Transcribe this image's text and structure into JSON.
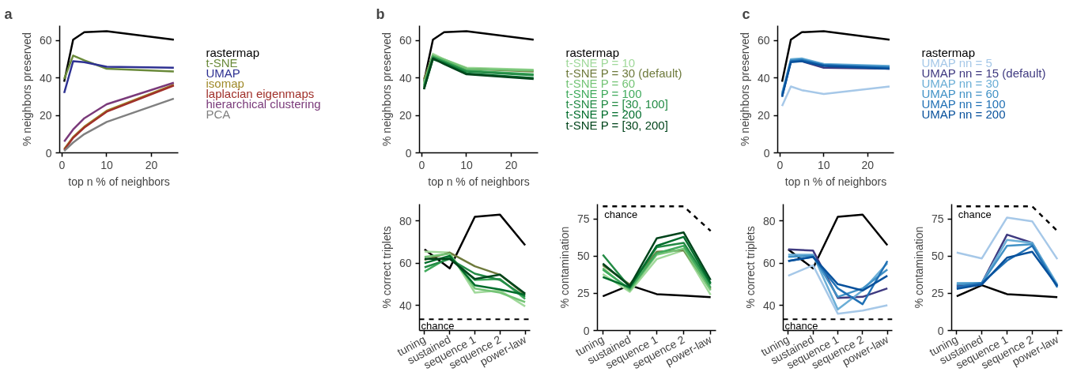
{
  "chart_data": [
    {
      "type": "line",
      "title": "a",
      "xlabel": "top n % of neighbors",
      "ylabel": "% neighbors preserved",
      "x": [
        0.5,
        2.5,
        5,
        10,
        25
      ],
      "xlim": [
        -0.5,
        26
      ],
      "xticks": [
        0,
        10,
        20
      ],
      "ylim": [
        0,
        68
      ],
      "yticks": [
        0,
        20,
        40,
        60
      ],
      "legend": "right",
      "series": [
        {
          "name": "rastermap",
          "color": "#000000",
          "values": [
            38,
            60.5,
            64.5,
            65,
            60.5
          ]
        },
        {
          "name": "t-SNE",
          "color": "#6a8a3a",
          "values": [
            39.5,
            52,
            49.5,
            45,
            43.5
          ]
        },
        {
          "name": "UMAP",
          "color": "#2e3192",
          "values": [
            32,
            49,
            48.5,
            46,
            45.5
          ]
        },
        {
          "name": "isomap",
          "color": "#a08a2a",
          "values": [
            2,
            8.5,
            14,
            22.5,
            36.5
          ]
        },
        {
          "name": "laplacian eigenmaps",
          "color": "#a0302a",
          "values": [
            1.5,
            8,
            13.5,
            22,
            36
          ]
        },
        {
          "name": "hierarchical clustering",
          "color": "#7a3a7a",
          "values": [
            6,
            12.5,
            18.5,
            26,
            37.5
          ]
        },
        {
          "name": "PCA",
          "color": "#808080",
          "values": [
            1,
            5.5,
            10,
            16.5,
            29
          ]
        }
      ]
    },
    {
      "type": "line",
      "title": "b",
      "xlabel": "top n % of neighbors",
      "ylabel": "% neighbors preserved",
      "x": [
        0.5,
        2.5,
        5,
        10,
        25
      ],
      "xlim": [
        -0.5,
        26
      ],
      "xticks": [
        0,
        10,
        20
      ],
      "ylim": [
        0,
        68
      ],
      "yticks": [
        0,
        20,
        40,
        60
      ],
      "legend": "right",
      "series": [
        {
          "name": "rastermap",
          "color": "#000000",
          "values": [
            38,
            60.5,
            64.5,
            65,
            60.5
          ]
        },
        {
          "name": "t-SNE P = 10",
          "color": "#a1d99b",
          "values": [
            38,
            53,
            50,
            45.5,
            44.5
          ]
        },
        {
          "name": "t-SNE P = 30 (default)",
          "color": "#6e7a3c",
          "values": [
            39.5,
            52,
            49.5,
            45,
            43.5
          ]
        },
        {
          "name": "t-SNE P = 60",
          "color": "#74c476",
          "values": [
            37,
            52,
            50,
            45,
            44
          ]
        },
        {
          "name": "t-SNE P = 100",
          "color": "#41ab5d",
          "values": [
            36,
            51.5,
            49,
            44,
            42
          ]
        },
        {
          "name": "t-SNE P = [30, 100]",
          "color": "#238b45",
          "values": [
            35,
            51,
            48.5,
            43.5,
            41.5
          ]
        },
        {
          "name": "t-SNE P = 200",
          "color": "#006d2c",
          "values": [
            34,
            50,
            48,
            42.5,
            40
          ]
        },
        {
          "name": "t-SNE P = [30, 200]",
          "color": "#00441b",
          "values": [
            34,
            50.5,
            47.5,
            42,
            39.5
          ]
        }
      ]
    },
    {
      "type": "line",
      "title": "c",
      "xlabel": "top n % of neighbors",
      "ylabel": "% neighbors preserved",
      "x": [
        0.5,
        2.5,
        5,
        10,
        25
      ],
      "xlim": [
        -0.5,
        26
      ],
      "xticks": [
        0,
        10,
        20
      ],
      "ylim": [
        0,
        68
      ],
      "yticks": [
        0,
        20,
        40,
        60
      ],
      "legend": "right",
      "series": [
        {
          "name": "rastermap",
          "color": "#000000",
          "values": [
            38,
            60.5,
            64.5,
            65,
            60.5
          ]
        },
        {
          "name": "UMAP nn = 5",
          "color": "#a6c8e8",
          "values": [
            25,
            35.5,
            33.5,
            31.5,
            35.5
          ]
        },
        {
          "name": "UMAP nn = 15 (default)",
          "color": "#3f3a80",
          "values": [
            31,
            49,
            49,
            45.5,
            45
          ]
        },
        {
          "name": "UMAP nn = 30",
          "color": "#6baed6",
          "values": [
            32,
            50,
            50.5,
            47.5,
            46.5
          ]
        },
        {
          "name": "UMAP nn = 60",
          "color": "#4292c6",
          "values": [
            31,
            49.5,
            50,
            47,
            46
          ]
        },
        {
          "name": "UMAP nn = 100",
          "color": "#2171b5",
          "values": [
            30,
            49,
            49.5,
            47,
            45.5
          ]
        },
        {
          "name": "UMAP nn = 200",
          "color": "#08519c",
          "values": [
            30,
            48.5,
            49,
            46.5,
            45
          ]
        }
      ]
    },
    {
      "type": "line",
      "ylabel": "% correct triplets",
      "categories": [
        "tuning",
        "sustained",
        "sequence 1",
        "sequence 2",
        "power-law"
      ],
      "ylim": [
        28,
        88
      ],
      "yticks": [
        40,
        60,
        80
      ],
      "ref_lines": [
        {
          "axis": "y",
          "value": 33.3,
          "label": "chance",
          "color": "#000000",
          "line_style": "dashed"
        }
      ],
      "series": [
        {
          "color": "#000000",
          "values": [
            66.5,
            57.5,
            82,
            83,
            68.5
          ]
        },
        {
          "color": "#a1d99b",
          "values": [
            65.5,
            65,
            46,
            47,
            39.5
          ]
        },
        {
          "color": "#6e7a3c",
          "values": [
            61.5,
            65,
            58.5,
            54.5,
            45
          ]
        },
        {
          "color": "#74c476",
          "values": [
            63,
            64.5,
            48,
            46,
            41.5
          ]
        },
        {
          "color": "#41ab5d",
          "values": [
            56,
            63,
            52,
            52.5,
            43
          ]
        },
        {
          "color": "#238b45",
          "values": [
            58,
            62,
            55,
            52,
            44
          ]
        },
        {
          "color": "#006d2c",
          "values": [
            60,
            63.5,
            49.5,
            47.5,
            45
          ]
        },
        {
          "color": "#00441b",
          "values": [
            62,
            62,
            52.5,
            54.5,
            45.5
          ]
        }
      ]
    },
    {
      "type": "line",
      "ylabel": "% contamination",
      "categories": [
        "tuning",
        "sustained",
        "sequence 1",
        "sequence 2",
        "power-law"
      ],
      "ylim": [
        0,
        85
      ],
      "yticks": [
        0,
        25,
        50,
        75
      ],
      "series": [
        {
          "name": "chance",
          "color": "#000000",
          "line_style": "dashed",
          "values": [
            83.5,
            83.5,
            83.5,
            83.5,
            67
          ]
        },
        {
          "color": "#000000",
          "values": [
            23,
            30.5,
            24.5,
            23.5,
            22.5
          ]
        },
        {
          "color": "#a1d99b",
          "values": [
            38,
            26,
            48,
            54,
            24
          ]
        },
        {
          "color": "#6e7a3c",
          "values": [
            44,
            31,
            53,
            54,
            28
          ]
        },
        {
          "color": "#74c476",
          "values": [
            42,
            27,
            51,
            55,
            27
          ]
        },
        {
          "color": "#41ab5d",
          "values": [
            41,
            28,
            52,
            57,
            29
          ]
        },
        {
          "color": "#238b45",
          "values": [
            51,
            29,
            56,
            59,
            31
          ]
        },
        {
          "color": "#006d2c",
          "values": [
            36,
            29,
            57,
            63,
            32
          ]
        },
        {
          "color": "#00441b",
          "values": [
            45,
            30,
            62,
            66,
            34
          ]
        }
      ]
    },
    {
      "type": "line",
      "ylabel": "% correct triplets",
      "categories": [
        "tuning",
        "sustained",
        "sequence 1",
        "sequence 2",
        "power-law"
      ],
      "ylim": [
        28,
        88
      ],
      "yticks": [
        40,
        60,
        80
      ],
      "ref_lines": [
        {
          "axis": "y",
          "value": 33.3,
          "label": "chance",
          "color": "#000000",
          "line_style": "dashed"
        }
      ],
      "series": [
        {
          "color": "#000000",
          "values": [
            66.5,
            57.5,
            82,
            83,
            68.5
          ]
        },
        {
          "color": "#a6c8e8",
          "values": [
            54,
            59,
            36,
            37.5,
            40
          ]
        },
        {
          "color": "#3f3a80",
          "values": [
            66.5,
            66,
            43.5,
            44,
            48
          ]
        },
        {
          "color": "#6baed6",
          "values": [
            64,
            64,
            38,
            47,
            60
          ]
        },
        {
          "color": "#4292c6",
          "values": [
            63,
            63.5,
            44,
            48,
            57
          ]
        },
        {
          "color": "#2171b5",
          "values": [
            61,
            63,
            48,
            40.5,
            61
          ]
        },
        {
          "color": "#08519c",
          "values": [
            61,
            63,
            50,
            47,
            54
          ]
        }
      ]
    },
    {
      "type": "line",
      "ylabel": "% contamination",
      "categories": [
        "tuning",
        "sustained",
        "sequence 1",
        "sequence 2",
        "power-law"
      ],
      "ylim": [
        0,
        85
      ],
      "yticks": [
        0,
        25,
        50,
        75
      ],
      "series": [
        {
          "name": "chance",
          "color": "#000000",
          "line_style": "dashed",
          "values": [
            83.5,
            83.5,
            83.5,
            83.5,
            67
          ]
        },
        {
          "color": "#000000",
          "values": [
            23,
            30.5,
            24.5,
            23.5,
            22.5
          ]
        },
        {
          "color": "#a6c8e8",
          "values": [
            52.5,
            48.5,
            76,
            73.5,
            48
          ]
        },
        {
          "color": "#3f3a80",
          "values": [
            30,
            32,
            64.5,
            59,
            30
          ]
        },
        {
          "color": "#6baed6",
          "values": [
            32,
            32,
            61,
            59,
            31
          ]
        },
        {
          "color": "#4292c6",
          "values": [
            31,
            32,
            57,
            58,
            30
          ]
        },
        {
          "color": "#2171b5",
          "values": [
            29,
            32,
            47,
            57,
            29
          ]
        },
        {
          "color": "#08519c",
          "values": [
            28,
            31,
            49,
            53,
            30
          ]
        }
      ]
    }
  ]
}
